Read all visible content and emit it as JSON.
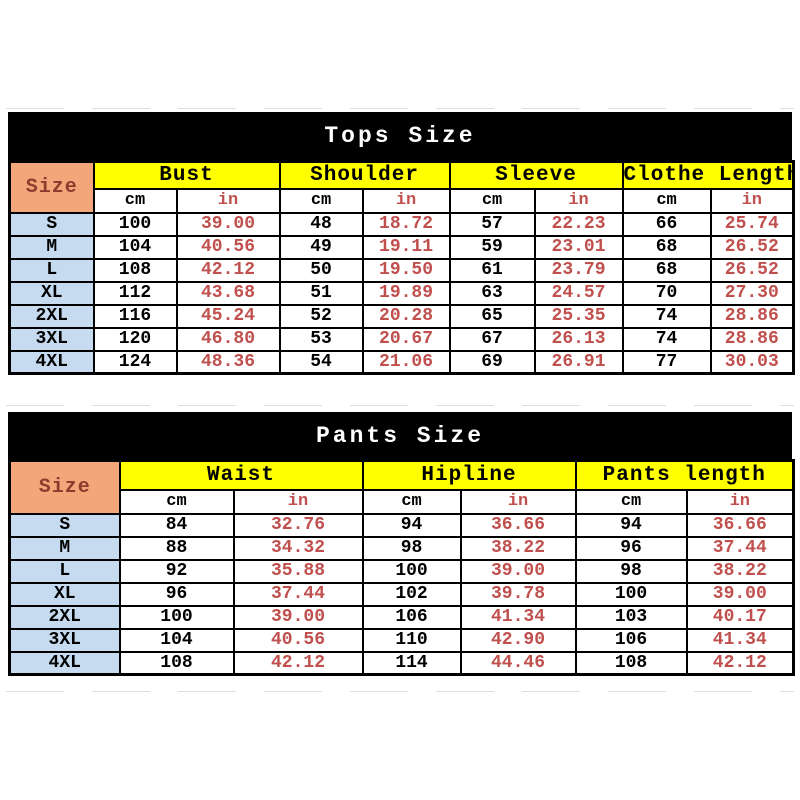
{
  "colors": {
    "title_bg": "#000000",
    "title_text": "#ffffff",
    "group_header_bg": "#ffff00",
    "size_corner_bg": "#f2a679",
    "size_corner_text": "#8e3b2f",
    "size_row_bg": "#c6dbf0",
    "cm_text": "#000000",
    "in_text": "#c0504d",
    "grid_border": "#000000"
  },
  "chart_data": [
    {
      "type": "table",
      "title": "Tops Size",
      "corner_label": "Size",
      "unit_labels": {
        "cm": "cm",
        "in": "in"
      },
      "column_groups": [
        "Bust",
        "Shoulder",
        "Sleeve",
        "Clothe Length"
      ],
      "rows": [
        {
          "size": "S",
          "values": [
            "100",
            "39.00",
            "48",
            "18.72",
            "57",
            "22.23",
            "66",
            "25.74"
          ]
        },
        {
          "size": "M",
          "values": [
            "104",
            "40.56",
            "49",
            "19.11",
            "59",
            "23.01",
            "68",
            "26.52"
          ]
        },
        {
          "size": "L",
          "values": [
            "108",
            "42.12",
            "50",
            "19.50",
            "61",
            "23.79",
            "68",
            "26.52"
          ]
        },
        {
          "size": "XL",
          "values": [
            "112",
            "43.68",
            "51",
            "19.89",
            "63",
            "24.57",
            "70",
            "27.30"
          ]
        },
        {
          "size": "2XL",
          "values": [
            "116",
            "45.24",
            "52",
            "20.28",
            "65",
            "25.35",
            "74",
            "28.86"
          ]
        },
        {
          "size": "3XL",
          "values": [
            "120",
            "46.80",
            "53",
            "20.67",
            "67",
            "26.13",
            "74",
            "28.86"
          ]
        },
        {
          "size": "4XL",
          "values": [
            "124",
            "48.36",
            "54",
            "21.06",
            "69",
            "26.91",
            "77",
            "30.03"
          ]
        }
      ]
    },
    {
      "type": "table",
      "title": "Pants Size",
      "corner_label": "Size",
      "unit_labels": {
        "cm": "cm",
        "in": "in"
      },
      "column_groups": [
        "Waist",
        "Hipline",
        "Pants length"
      ],
      "rows": [
        {
          "size": "S",
          "values": [
            "84",
            "32.76",
            "94",
            "36.66",
            "94",
            "36.66"
          ]
        },
        {
          "size": "M",
          "values": [
            "88",
            "34.32",
            "98",
            "38.22",
            "96",
            "37.44"
          ]
        },
        {
          "size": "L",
          "values": [
            "92",
            "35.88",
            "100",
            "39.00",
            "98",
            "38.22"
          ]
        },
        {
          "size": "XL",
          "values": [
            "96",
            "37.44",
            "102",
            "39.78",
            "100",
            "39.00"
          ]
        },
        {
          "size": "2XL",
          "values": [
            "100",
            "39.00",
            "106",
            "41.34",
            "103",
            "40.17"
          ]
        },
        {
          "size": "3XL",
          "values": [
            "104",
            "40.56",
            "110",
            "42.90",
            "106",
            "41.34"
          ]
        },
        {
          "size": "4XL",
          "values": [
            "108",
            "42.12",
            "114",
            "44.46",
            "108",
            "42.12"
          ]
        }
      ]
    }
  ]
}
